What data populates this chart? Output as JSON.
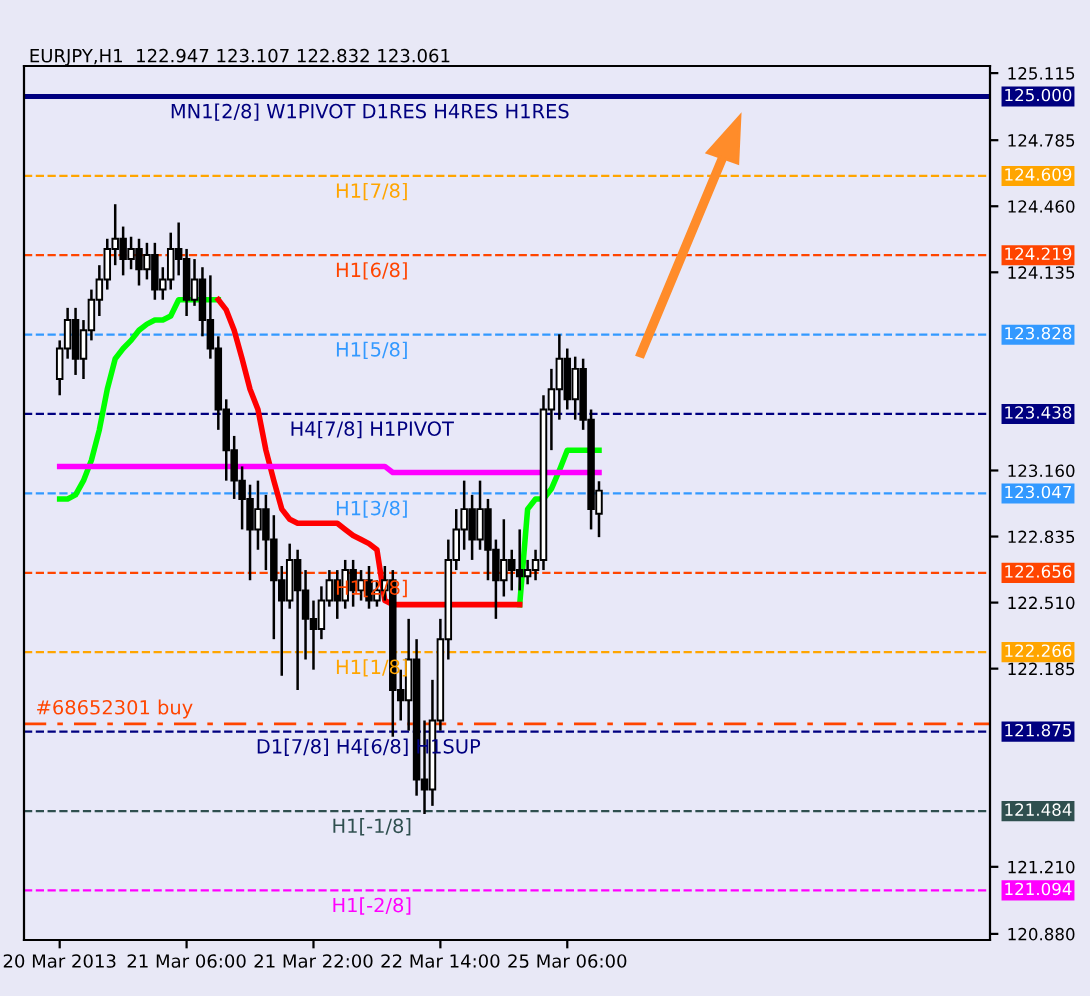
{
  "chart_data": {
    "type": "candlestick",
    "title": "EURJPY,H1  122.947 123.107 122.832 123.061",
    "categories": [
      "20 Mar 2013",
      null,
      null,
      null,
      null,
      null,
      null,
      null,
      null,
      null,
      null,
      null,
      null,
      null,
      null,
      null,
      "21 Mar 06:00",
      null,
      null,
      null,
      null,
      null,
      null,
      null,
      null,
      null,
      null,
      null,
      null,
      null,
      null,
      null,
      "21 Mar 22:00",
      null,
      null,
      null,
      null,
      null,
      null,
      null,
      null,
      null,
      null,
      null,
      null,
      null,
      null,
      null,
      "22 Mar 14:00",
      null,
      null,
      null,
      null,
      null,
      null,
      null,
      null,
      null,
      null,
      null,
      null,
      null,
      null,
      null,
      "25 Mar 06:00",
      null,
      null,
      null,
      null
    ],
    "ohlc": [
      [
        123.61,
        123.8,
        123.53,
        123.76
      ],
      [
        123.76,
        123.96,
        123.71,
        123.9
      ],
      [
        123.9,
        123.96,
        123.63,
        123.71
      ],
      [
        123.71,
        123.9,
        123.61,
        123.85
      ],
      [
        123.85,
        124.05,
        123.8,
        124.0
      ],
      [
        124.0,
        124.17,
        123.92,
        124.1
      ],
      [
        124.1,
        124.3,
        124.05,
        124.25
      ],
      [
        124.25,
        124.47,
        124.17,
        124.3
      ],
      [
        124.3,
        124.36,
        124.12,
        124.2
      ],
      [
        124.2,
        124.31,
        124.15,
        124.25
      ],
      [
        124.25,
        124.3,
        124.07,
        124.15
      ],
      [
        124.15,
        124.28,
        124.1,
        124.22
      ],
      [
        124.22,
        124.28,
        124.0,
        124.05
      ],
      [
        124.05,
        124.16,
        124.0,
        124.1
      ],
      [
        124.1,
        124.33,
        124.05,
        124.25
      ],
      [
        124.25,
        124.38,
        124.12,
        124.2
      ],
      [
        124.2,
        124.25,
        123.92,
        124.0
      ],
      [
        124.0,
        124.2,
        123.97,
        124.1
      ],
      [
        124.1,
        124.16,
        123.82,
        123.9
      ],
      [
        123.9,
        124.12,
        123.71,
        123.76
      ],
      [
        123.76,
        123.82,
        123.36,
        123.46
      ],
      [
        123.46,
        123.51,
        123.11,
        123.26
      ],
      [
        123.26,
        123.33,
        123.02,
        123.11
      ],
      [
        123.11,
        123.18,
        122.87,
        123.02
      ],
      [
        123.02,
        123.09,
        122.62,
        122.87
      ],
      [
        122.87,
        123.11,
        122.77,
        122.97
      ],
      [
        122.97,
        123.04,
        122.67,
        122.82
      ],
      [
        122.82,
        122.94,
        122.33,
        122.62
      ],
      [
        122.62,
        122.69,
        122.15,
        122.52
      ],
      [
        122.52,
        122.8,
        122.48,
        122.72
      ],
      [
        122.72,
        122.77,
        122.08,
        122.57
      ],
      [
        122.57,
        122.67,
        122.23,
        122.43
      ],
      [
        122.43,
        122.52,
        122.18,
        122.38
      ],
      [
        122.38,
        122.59,
        122.33,
        122.52
      ],
      [
        122.52,
        122.67,
        122.49,
        122.62
      ],
      [
        122.62,
        122.67,
        122.43,
        122.52
      ],
      [
        122.52,
        122.72,
        122.48,
        122.67
      ],
      [
        122.67,
        122.72,
        122.49,
        122.57
      ],
      [
        122.57,
        122.67,
        122.52,
        122.62
      ],
      [
        122.62,
        122.69,
        122.48,
        122.52
      ],
      [
        122.52,
        122.62,
        122.49,
        122.57
      ],
      [
        122.57,
        122.69,
        122.52,
        122.62
      ],
      [
        122.62,
        122.67,
        121.85,
        122.08
      ],
      [
        122.08,
        122.18,
        121.93,
        122.03
      ],
      [
        122.03,
        122.43,
        121.88,
        122.23
      ],
      [
        122.23,
        122.33,
        121.56,
        121.64
      ],
      [
        121.64,
        121.93,
        121.47,
        121.59
      ],
      [
        121.59,
        122.13,
        121.51,
        121.93
      ],
      [
        121.93,
        122.43,
        121.88,
        122.33
      ],
      [
        122.33,
        122.82,
        122.23,
        122.72
      ],
      [
        122.72,
        122.97,
        122.67,
        122.87
      ],
      [
        122.87,
        123.11,
        122.77,
        122.97
      ],
      [
        122.97,
        123.04,
        122.72,
        122.82
      ],
      [
        122.82,
        123.11,
        122.77,
        122.97
      ],
      [
        122.97,
        123.02,
        122.62,
        122.77
      ],
      [
        122.77,
        122.82,
        122.43,
        122.62
      ],
      [
        122.62,
        122.92,
        122.54,
        122.72
      ],
      [
        122.72,
        122.77,
        122.57,
        122.67
      ],
      [
        122.67,
        122.87,
        122.57,
        122.64
      ],
      [
        122.64,
        122.72,
        122.6,
        122.67
      ],
      [
        122.67,
        122.77,
        122.62,
        122.72
      ],
      [
        122.72,
        123.53,
        122.67,
        123.46
      ],
      [
        123.46,
        123.66,
        123.26,
        123.56
      ],
      [
        123.56,
        123.83,
        123.41,
        123.71
      ],
      [
        123.71,
        123.76,
        123.46,
        123.51
      ],
      [
        123.51,
        123.72,
        123.41,
        123.66
      ],
      [
        123.66,
        123.71,
        123.36,
        123.41
      ],
      [
        123.41,
        123.46,
        122.87,
        122.97
      ],
      [
        122.947,
        123.107,
        122.832,
        123.061
      ]
    ],
    "series": [
      {
        "type": "line",
        "color": "#00ff00",
        "values": [
          123.02,
          123.02,
          123.04,
          123.11,
          123.21,
          123.36,
          123.56,
          123.71,
          123.76,
          123.8,
          123.85,
          123.88,
          123.9,
          123.9,
          123.92,
          124.0,
          124.0,
          124.0,
          124.0,
          124.0,
          124.0,
          null,
          null,
          null,
          null,
          null,
          null,
          null,
          null,
          null,
          null,
          null,
          null,
          null,
          null,
          null,
          null,
          null,
          null,
          null,
          null,
          null,
          null,
          null,
          null,
          null,
          null,
          null,
          null,
          null,
          null,
          null,
          null,
          null,
          null,
          null,
          null,
          null,
          122.5,
          122.97,
          123.02,
          123.02,
          123.07,
          123.16,
          123.26,
          123.26,
          123.26,
          123.26,
          123.26
        ]
      },
      {
        "type": "line",
        "color": "#ff0000",
        "values": [
          null,
          null,
          null,
          null,
          null,
          null,
          null,
          null,
          null,
          null,
          null,
          null,
          null,
          null,
          null,
          null,
          null,
          null,
          null,
          null,
          124.0,
          123.95,
          123.85,
          123.71,
          123.56,
          123.46,
          123.26,
          123.11,
          122.97,
          122.92,
          122.9,
          122.9,
          122.9,
          122.9,
          122.9,
          122.9,
          122.87,
          122.84,
          122.82,
          122.8,
          122.77,
          122.52,
          122.5,
          122.5,
          122.5,
          122.5,
          122.5,
          122.5,
          122.5,
          122.5,
          122.5,
          122.5,
          122.5,
          122.5,
          122.5,
          122.5,
          122.5,
          122.5,
          122.5,
          null,
          null,
          null,
          null,
          null,
          null,
          null,
          null,
          null,
          null
        ]
      },
      {
        "type": "line",
        "color": "#ff00ff",
        "values": [
          123.18,
          123.18,
          123.18,
          123.18,
          123.18,
          123.18,
          123.18,
          123.18,
          123.18,
          123.18,
          123.18,
          123.18,
          123.18,
          123.18,
          123.18,
          123.18,
          123.18,
          123.18,
          123.18,
          123.18,
          123.18,
          123.18,
          123.18,
          123.18,
          123.18,
          123.18,
          123.18,
          123.18,
          123.18,
          123.18,
          123.18,
          123.18,
          123.18,
          123.18,
          123.18,
          123.18,
          123.18,
          123.18,
          123.18,
          123.18,
          123.18,
          123.18,
          123.15,
          123.15,
          123.15,
          123.15,
          123.15,
          123.15,
          123.15,
          123.15,
          123.15,
          123.15,
          123.15,
          123.15,
          123.15,
          123.15,
          123.15,
          123.15,
          123.15,
          123.15,
          123.15,
          123.15,
          123.15,
          123.15,
          123.15,
          123.15,
          123.15,
          123.15,
          123.15
        ]
      }
    ],
    "ref_lines": [
      {
        "axis": "y",
        "value": 125.0,
        "label": "MN1[2/8] W1PIVOT D1RES H4RES H1RES",
        "color": "#000080",
        "line_style": "solid"
      },
      {
        "axis": "y",
        "value": 124.609,
        "label": "H1[7/8]",
        "color": "#ffa500",
        "line_style": "dashed"
      },
      {
        "axis": "y",
        "value": 124.219,
        "label": "H1[6/8]",
        "color": "#ff4500",
        "line_style": "dashed"
      },
      {
        "axis": "y",
        "value": 123.828,
        "label": "H1[5/8]",
        "color": "#3399ff",
        "line_style": "dashed"
      },
      {
        "axis": "y",
        "value": 123.438,
        "label": "H4[7/8] H1PIVOT",
        "color": "#000080",
        "line_style": "dashed"
      },
      {
        "axis": "y",
        "value": 123.047,
        "label": "H1[3/8]",
        "color": "#3399ff",
        "line_style": "dashed"
      },
      {
        "axis": "y",
        "value": 122.656,
        "label": "H1[2/8]",
        "color": "#ff4500",
        "line_style": "dashed"
      },
      {
        "axis": "y",
        "value": 122.266,
        "label": "H1[1/8]",
        "color": "#ffa500",
        "line_style": "dashed"
      },
      {
        "axis": "y",
        "value": 121.875,
        "label": "D1[7/8] H4[6/8] H1SUP",
        "color": "#000080",
        "line_style": "dashed"
      },
      {
        "axis": "y",
        "value": 121.484,
        "label": "H1[-1/8]",
        "color": "#2f4f4f",
        "line_style": "dashed"
      },
      {
        "axis": "y",
        "value": 121.094,
        "label": "H1[-2/8]",
        "color": "#ff00ff",
        "line_style": "dashed"
      },
      {
        "axis": "y",
        "value": 121.913,
        "label": "#68652301 buy",
        "color": "#ff4500",
        "line_style": "dashed"
      }
    ],
    "ylim": [
      120.85,
      125.15
    ],
    "annotations": [
      "125.000",
      "124.609",
      "124.219",
      "123.828",
      "123.438",
      "123.047",
      "122.656",
      "122.266",
      "121.875",
      "121.484",
      "121.094"
    ],
    "yticks": [
      125.115,
      124.785,
      {
        "value": 124.46,
        "label": "124.460"
      },
      124.135,
      {
        "value": 123.16,
        "label": "123.160"
      },
      122.835,
      {
        "value": 122.51,
        "label": "122.510"
      },
      122.185,
      {
        "value": 121.21,
        "label": "121.210"
      },
      {
        "value": 120.88,
        "label": "120.880"
      }
    ]
  }
}
